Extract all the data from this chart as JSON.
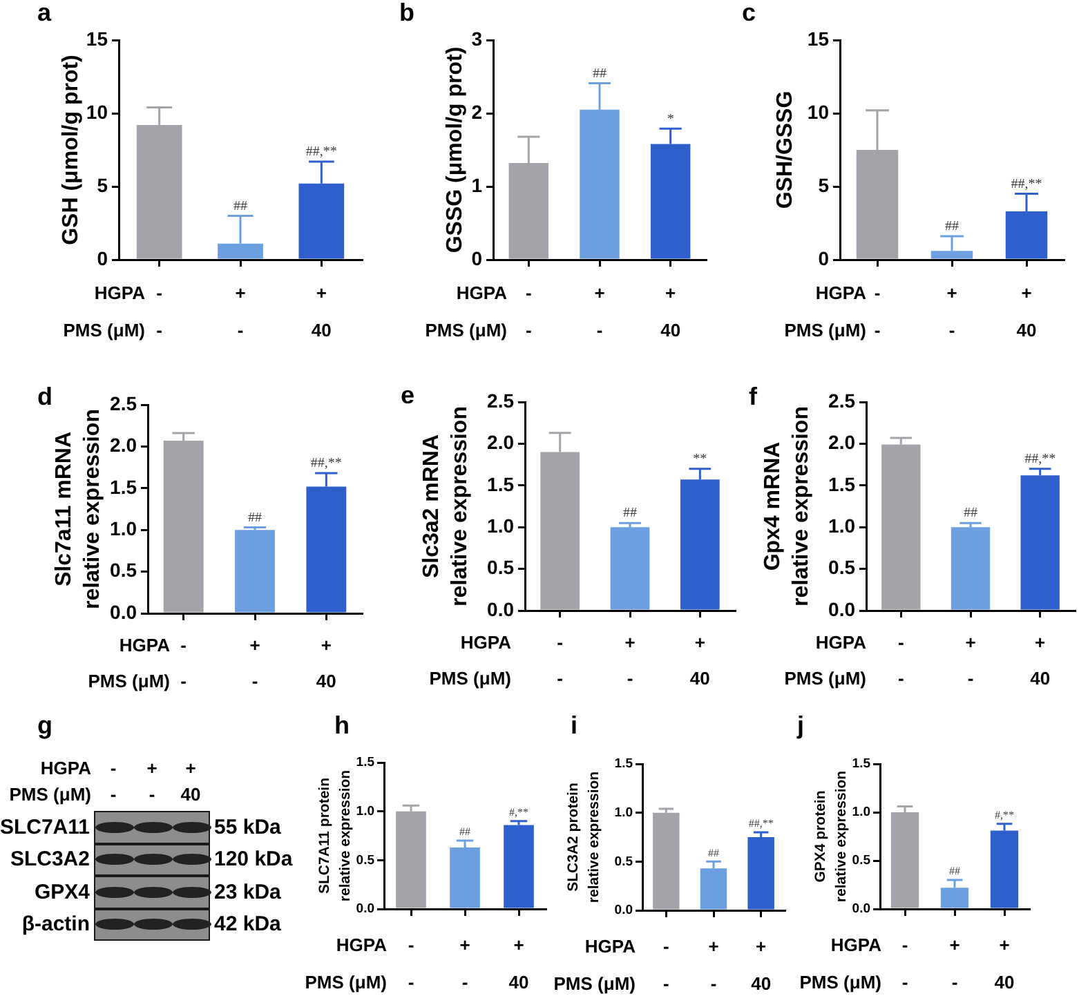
{
  "chart_data": [
    {
      "type": "bar",
      "title": "a",
      "ylabel": "GSH (μmol/g prot)",
      "categories": [
        "-\n-",
        "+\n-",
        "+\n40"
      ],
      "values": [
        9.2,
        1.1,
        5.2
      ],
      "colors": [
        "#a3a3a9",
        "#6b9fe0",
        "#2e5fcd"
      ],
      "errors": [
        [
          9.2,
          10.4
        ],
        [
          1.1,
          3.0
        ],
        [
          5.2,
          6.7
        ]
      ],
      "ylim": [
        0,
        15
      ],
      "yticks": [
        0,
        5,
        10,
        15
      ],
      "annotations": [
        "HGPA",
        "PMS (μM)",
        {
          "text": "##",
          "x": "+\n-",
          "y": 3.0
        },
        {
          "text": "##,**",
          "x": "+\n40",
          "y": 6.7
        }
      ]
    },
    {
      "type": "bar",
      "title": "b",
      "ylabel": "GSSG (μmol/g prot)",
      "categories": [
        "-\n-",
        "+\n-",
        "+\n40"
      ],
      "values": [
        1.32,
        2.05,
        1.58
      ],
      "colors": [
        "#a3a3a9",
        "#6b9fe0",
        "#2e5fcd"
      ],
      "errors": [
        [
          1.32,
          1.68
        ],
        [
          2.05,
          2.41
        ],
        [
          1.58,
          1.79
        ]
      ],
      "ylim": [
        0,
        3
      ],
      "yticks": [
        0,
        1,
        2,
        3
      ],
      "annotations": [
        "HGPA",
        "PMS (μM)",
        {
          "text": "##",
          "x": "+\n-",
          "y": 2.41
        },
        {
          "text": "*",
          "x": "+\n40",
          "y": 1.79
        }
      ]
    },
    {
      "type": "bar",
      "title": "c",
      "ylabel": "GSH/GSSG",
      "categories": [
        "-\n-",
        "+\n-",
        "+\n40"
      ],
      "values": [
        7.5,
        0.6,
        3.3
      ],
      "colors": [
        "#a3a3a9",
        "#6b9fe0",
        "#2e5fcd"
      ],
      "errors": [
        [
          7.5,
          10.2
        ],
        [
          0.6,
          1.6
        ],
        [
          3.3,
          4.5
        ]
      ],
      "ylim": [
        0,
        15
      ],
      "yticks": [
        0,
        5,
        10,
        15
      ],
      "annotations": [
        "HGPA",
        "PMS (μM)",
        {
          "text": "##",
          "x": "+\n-",
          "y": 1.6
        },
        {
          "text": "##,**",
          "x": "+\n40",
          "y": 4.5
        }
      ]
    },
    {
      "type": "bar",
      "title": "d",
      "ylabel": "Slc7a11 mRNA\nrelative expression",
      "categories": [
        "-\n-",
        "+\n-",
        "+\n40"
      ],
      "values": [
        2.07,
        1.0,
        1.52
      ],
      "colors": [
        "#a3a3a9",
        "#6b9fe0",
        "#2e5fcd"
      ],
      "errors": [
        [
          2.07,
          2.16
        ],
        [
          1.0,
          1.03
        ],
        [
          1.52,
          1.68
        ]
      ],
      "ylim": [
        0,
        2.5
      ],
      "yticks": [
        {
          "value": 0,
          "label": "0.0"
        },
        0.5,
        {
          "value": 1,
          "label": "1.0"
        },
        1.5,
        {
          "value": 2,
          "label": "2.0"
        },
        2.5
      ],
      "annotations": [
        "HGPA",
        "PMS (μM)",
        {
          "text": "##",
          "x": "+\n-",
          "y": 1.03
        },
        {
          "text": "##,**",
          "x": "+\n40",
          "y": 1.68
        }
      ]
    },
    {
      "type": "bar",
      "title": "e",
      "ylabel": "Slc3a2 mRNA\nrelative expression",
      "categories": [
        "-\n-",
        "+\n-",
        "+\n40"
      ],
      "values": [
        1.9,
        1.0,
        1.57
      ],
      "colors": [
        "#a3a3a9",
        "#6b9fe0",
        "#2e5fcd"
      ],
      "errors": [
        [
          1.9,
          2.13
        ],
        [
          1.0,
          1.05
        ],
        [
          1.57,
          1.7
        ]
      ],
      "ylim": [
        0,
        2.5
      ],
      "yticks": [
        {
          "value": 0,
          "label": "0.0"
        },
        0.5,
        {
          "value": 1,
          "label": "1.0"
        },
        1.5,
        {
          "value": 2,
          "label": "2.0"
        },
        2.5
      ],
      "annotations": [
        "HGPA",
        "PMS (μM)",
        {
          "text": "##",
          "x": "+\n-",
          "y": 1.05
        },
        {
          "text": "**",
          "x": "+\n40",
          "y": 1.7
        }
      ]
    },
    {
      "type": "bar",
      "title": "f",
      "ylabel": "Gpx4 mRNA\nrelative expression",
      "categories": [
        "-\n-",
        "+\n-",
        "+\n40"
      ],
      "values": [
        1.99,
        1.0,
        1.62
      ],
      "colors": [
        "#a3a3a9",
        "#6b9fe0",
        "#2e5fcd"
      ],
      "errors": [
        [
          1.99,
          2.07
        ],
        [
          1.0,
          1.05
        ],
        [
          1.62,
          1.7
        ]
      ],
      "ylim": [
        0,
        2.5
      ],
      "yticks": [
        {
          "value": 0,
          "label": "0.0"
        },
        0.5,
        {
          "value": 1,
          "label": "1.0"
        },
        1.5,
        {
          "value": 2,
          "label": "2.0"
        },
        2.5
      ],
      "annotations": [
        "HGPA",
        "PMS (μM)",
        {
          "text": "##",
          "x": "+\n-",
          "y": 1.05
        },
        {
          "text": "##,**",
          "x": "+\n40",
          "y": 1.7
        }
      ]
    },
    {
      "type": "other",
      "title": "g",
      "categories": [
        "-\n-",
        "+\n-",
        "+\n40"
      ],
      "y_categories": [
        "SLC7A11",
        "SLC3A2",
        "GPX4",
        "β-actin"
      ],
      "y2_categories": [
        "55 kDa",
        "120 kDa",
        "23 kDa",
        "42 kDa"
      ],
      "annotations": [
        "HGPA",
        "PMS (μM)"
      ]
    },
    {
      "type": "bar",
      "title": "h",
      "ylabel": "SLC7A11 protein\nrelative expression",
      "categories": [
        "-\n-",
        "+\n-",
        "+\n40"
      ],
      "values": [
        1.0,
        0.63,
        0.86
      ],
      "colors": [
        "#a3a3a9",
        "#6b9fe0",
        "#2e5fcd"
      ],
      "errors": [
        [
          1.0,
          1.06
        ],
        [
          0.63,
          0.7
        ],
        [
          0.86,
          0.9
        ]
      ],
      "ylim": [
        0,
        1.5
      ],
      "yticks": [
        {
          "value": 0,
          "label": "0.0"
        },
        0.5,
        {
          "value": 1,
          "label": "1.0"
        },
        1.5
      ],
      "annotations": [
        "HGPA",
        "PMS (μM)",
        {
          "text": "##",
          "x": "+\n-",
          "y": 0.7
        },
        {
          "text": "#,**",
          "x": "+\n40",
          "y": 0.9
        }
      ]
    },
    {
      "type": "bar",
      "title": "i",
      "ylabel": "SLC3A2 protein\nrelative expression",
      "categories": [
        "-\n-",
        "+\n-",
        "+\n40"
      ],
      "values": [
        1.0,
        0.43,
        0.75
      ],
      "colors": [
        "#a3a3a9",
        "#6b9fe0",
        "#2e5fcd"
      ],
      "errors": [
        [
          1.0,
          1.04
        ],
        [
          0.43,
          0.5
        ],
        [
          0.75,
          0.8
        ]
      ],
      "ylim": [
        0,
        1.5
      ],
      "yticks": [
        {
          "value": 0,
          "label": "0.0"
        },
        0.5,
        {
          "value": 1,
          "label": "1.0"
        },
        1.5
      ],
      "annotations": [
        "HGPA",
        "PMS (μM)",
        {
          "text": "##",
          "x": "+\n-",
          "y": 0.5
        },
        {
          "text": "##,**",
          "x": "+\n40",
          "y": 0.8
        }
      ]
    },
    {
      "type": "bar",
      "title": "j",
      "ylabel": "GPX4 protein\nrelative expression",
      "categories": [
        "-\n-",
        "+\n-",
        "+\n40"
      ],
      "values": [
        1.0,
        0.22,
        0.81
      ],
      "colors": [
        "#a3a3a9",
        "#6b9fe0",
        "#2e5fcd"
      ],
      "errors": [
        [
          1.0,
          1.06
        ],
        [
          0.22,
          0.3
        ],
        [
          0.81,
          0.88
        ]
      ],
      "ylim": [
        0,
        1.5
      ],
      "yticks": [
        {
          "value": 0,
          "label": "0.0"
        },
        0.5,
        {
          "value": 1,
          "label": "1.0"
        },
        1.5
      ],
      "annotations": [
        "HGPA",
        "PMS (μM)",
        {
          "text": "##",
          "x": "+\n-",
          "y": 0.3
        },
        {
          "text": "#,**",
          "x": "+\n40",
          "y": 0.88
        }
      ]
    }
  ]
}
